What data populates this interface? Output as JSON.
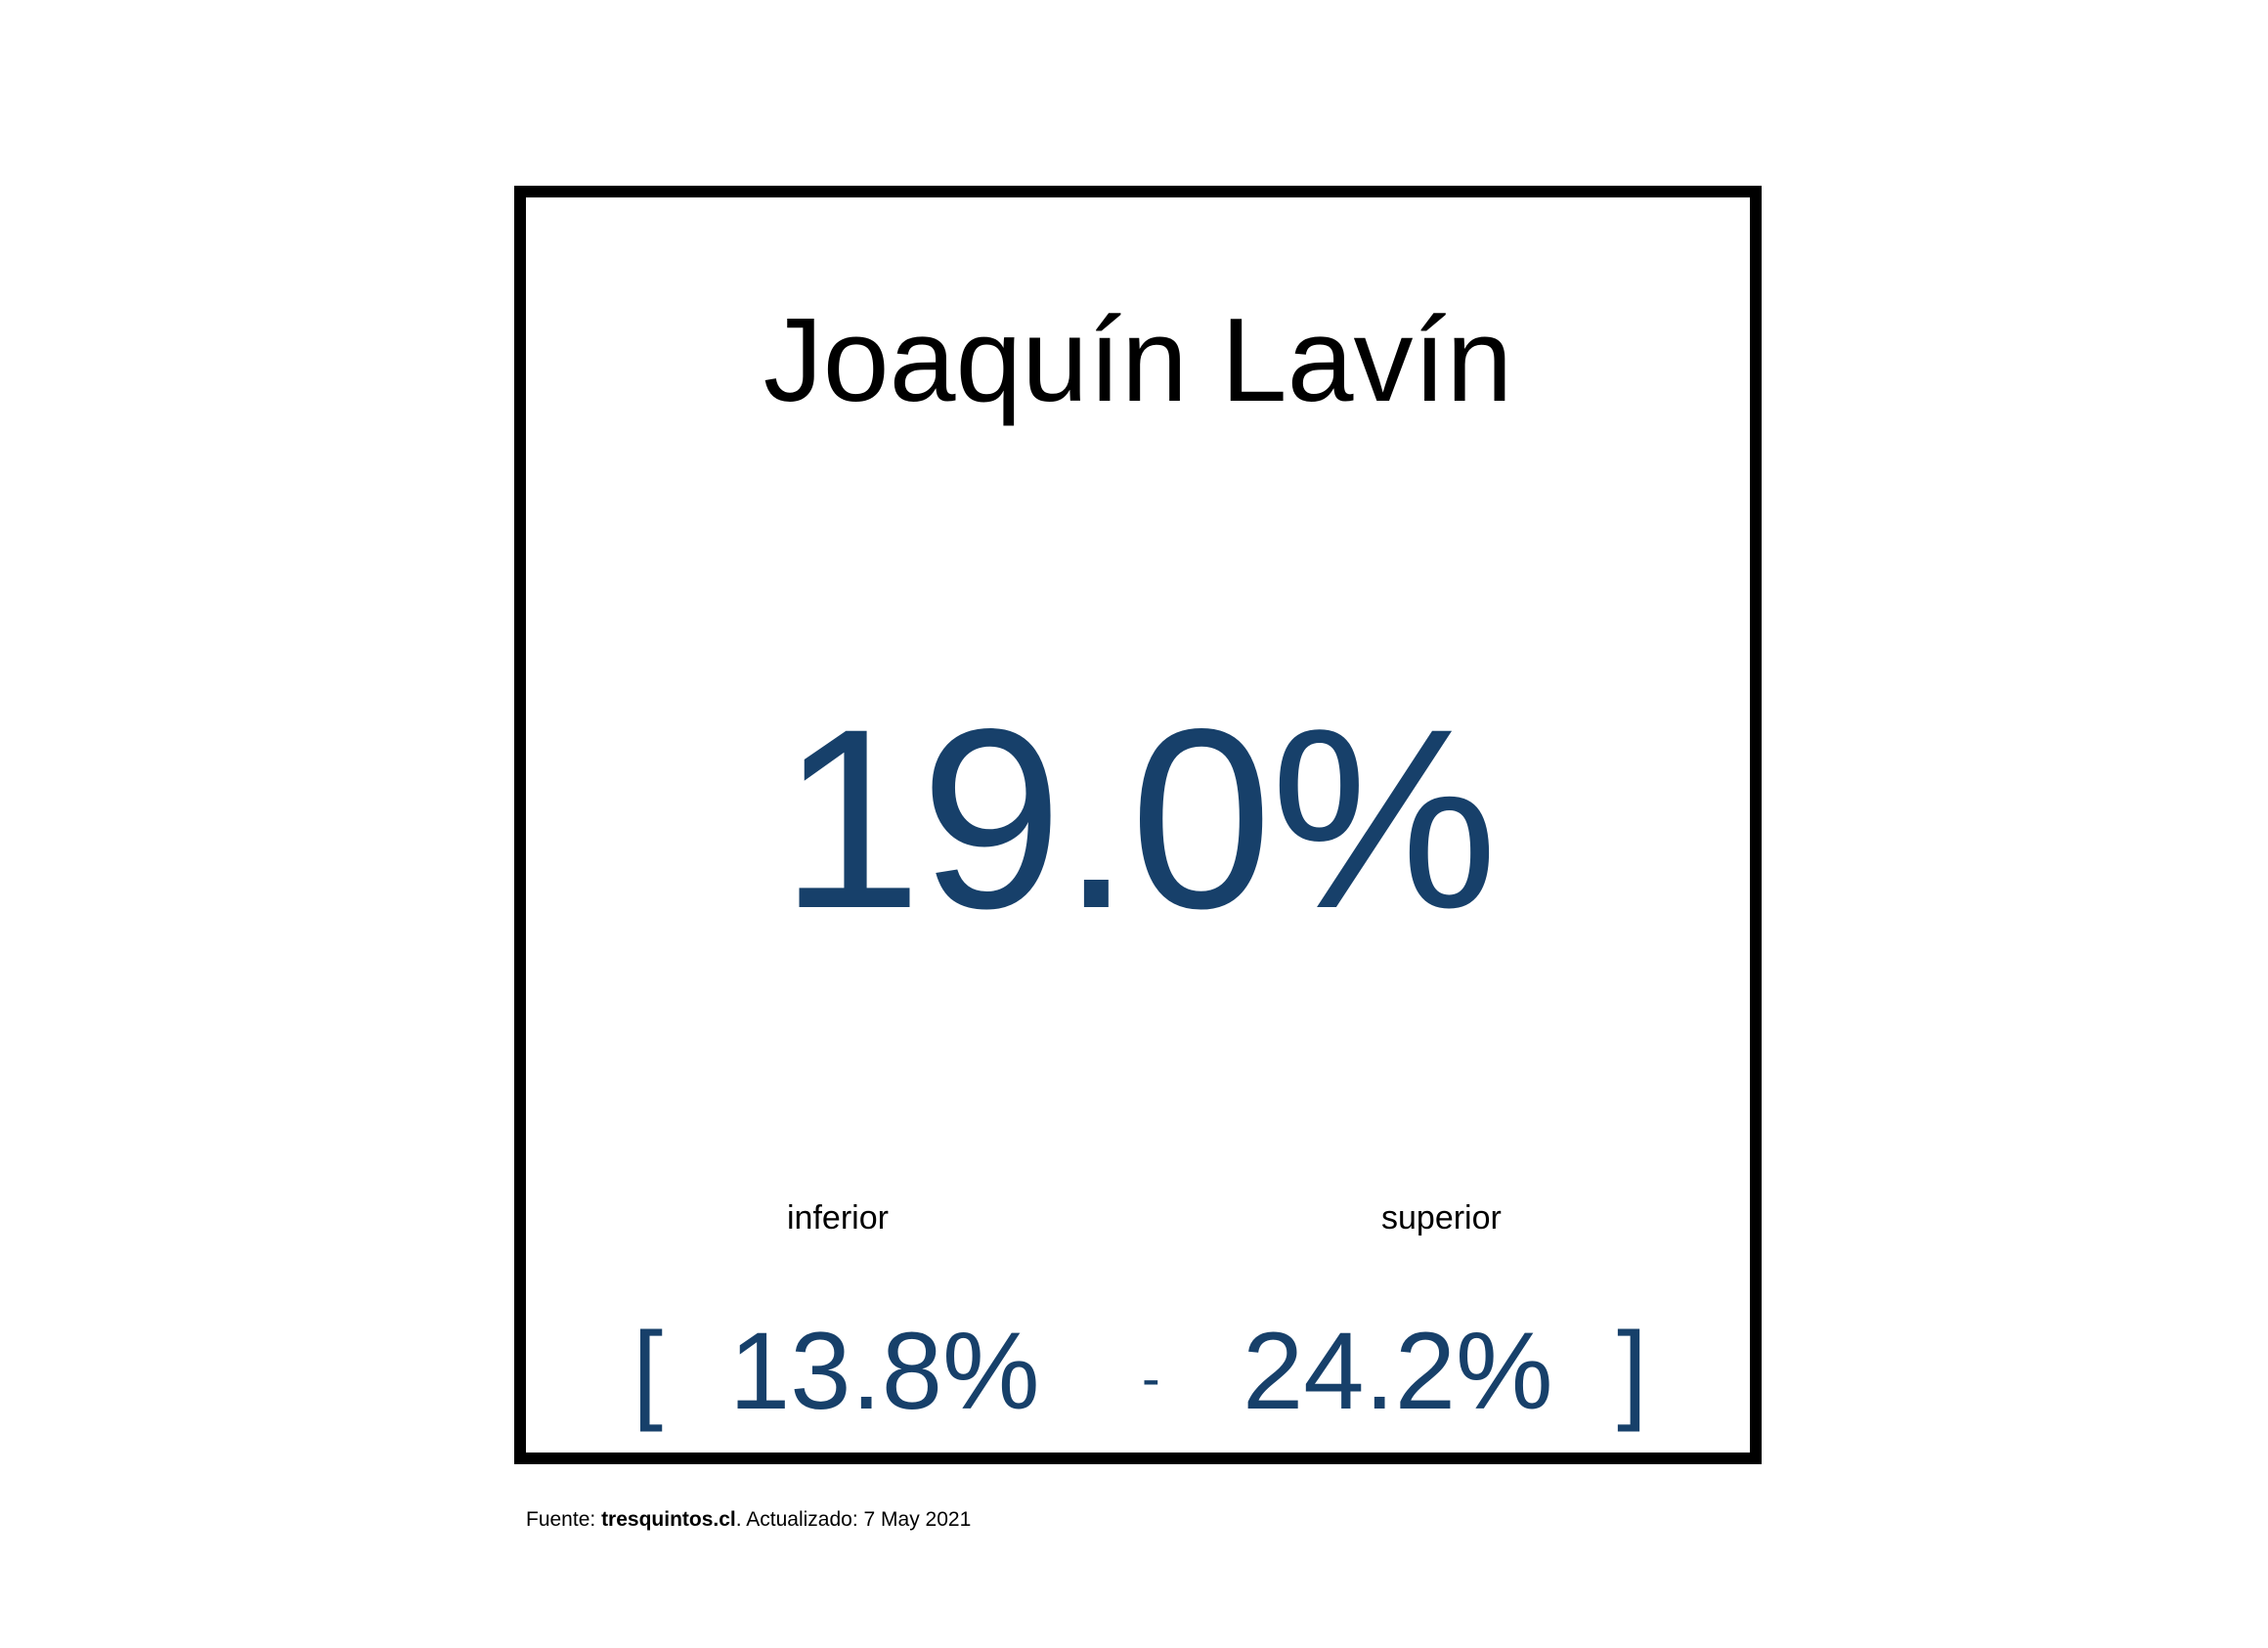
{
  "card": {
    "candidate": "Joaquín Lavín",
    "estimate": "19.0%",
    "lower_label": "inferior",
    "upper_label": "superior",
    "bracket_open": "[",
    "lower_value": "13.8%",
    "separator": "-",
    "upper_value": "24.2%",
    "bracket_close": "]"
  },
  "footer": {
    "prefix": "Fuente: ",
    "source": "tresquintos.cl",
    "suffix": ". Actualizado: 7 May 2021"
  },
  "colors": {
    "accent": "#17406a",
    "border": "#000000",
    "text": "#000000",
    "background": "#ffffff"
  }
}
